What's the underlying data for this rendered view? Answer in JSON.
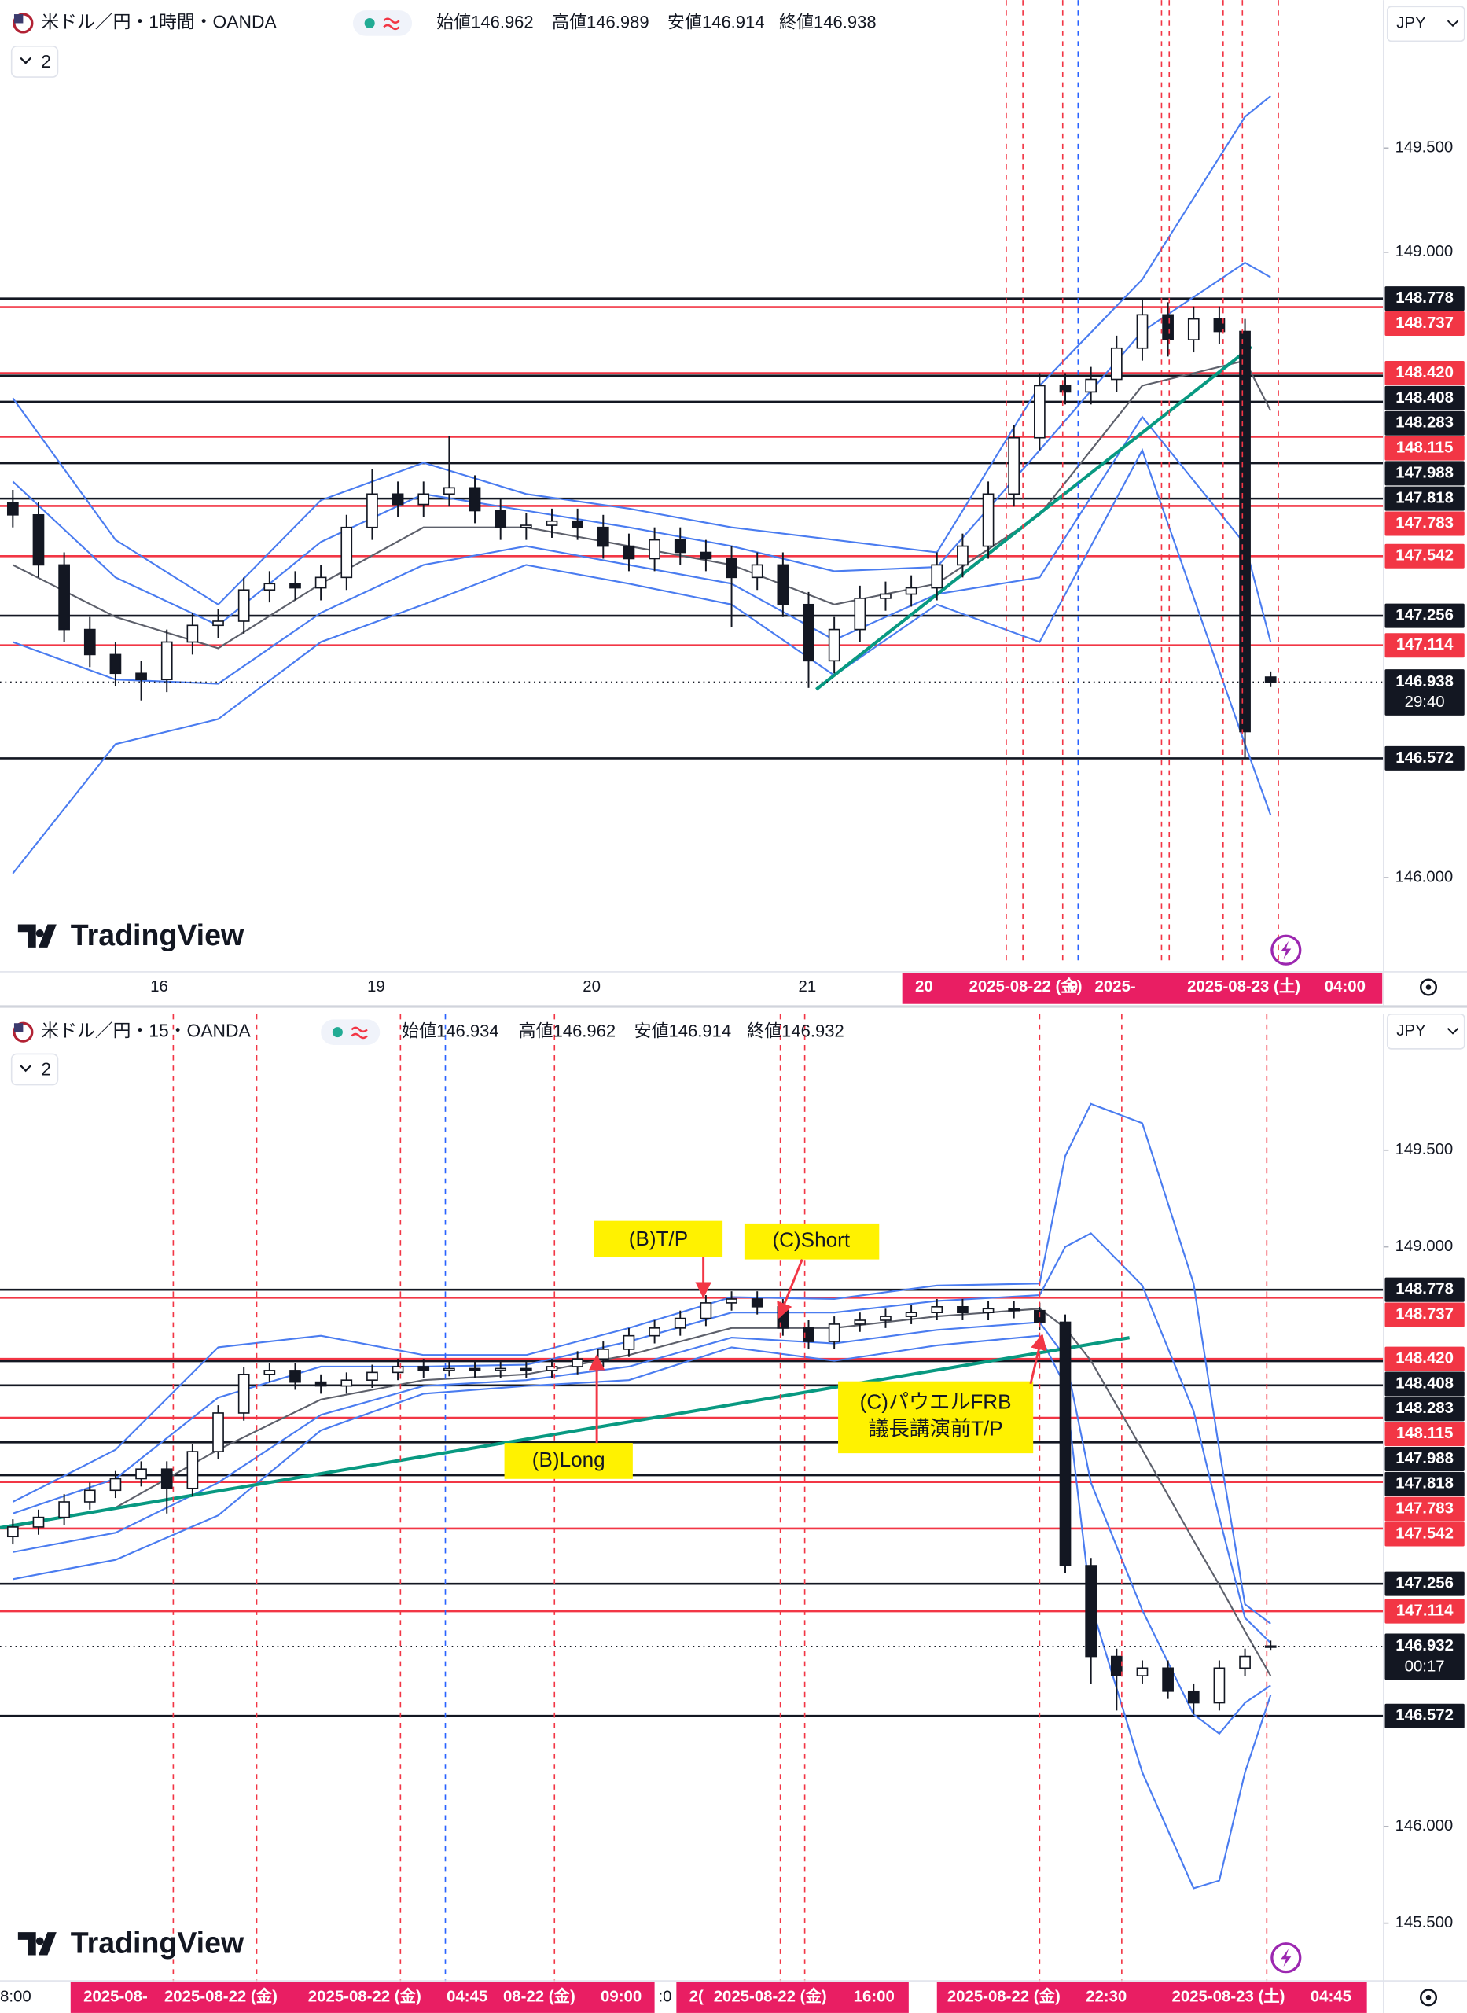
{
  "chart_data": [
    {
      "type": "candlestick",
      "title": "米ドル／円・1時間・OANDA",
      "ohlc_legend": [
        "始値146.962",
        "高値146.989",
        "安値146.914",
        "終値146.938"
      ],
      "indicator_count": 2,
      "currency": "JPY",
      "logo": "TradingView",
      "ylim": [
        145.56,
        150.21
      ],
      "yticks": [
        {
          "value": 149.5,
          "label": "149.500"
        },
        {
          "value": 149,
          "label": "149.000"
        },
        {
          "value": 146,
          "label": "146.000"
        }
      ],
      "xtick_labels": [
        "16",
        "19",
        "20",
        "21"
      ],
      "time_labels": [
        "20",
        "2025-08-22 (金)",
        "0",
        "2025-",
        "2025-08-23 (土)",
        "04:00"
      ],
      "up_color": "#ffffff",
      "down_color": "#131722",
      "candles": {
        "open": [
          147.8,
          147.74,
          147.5,
          147.19,
          147.07,
          146.98,
          146.95,
          147.13,
          147.21,
          147.23,
          147.38,
          147.41,
          147.39,
          147.44,
          147.68,
          147.84,
          147.79,
          147.84,
          147.87,
          147.76,
          147.68,
          147.69,
          147.71,
          147.68,
          147.59,
          147.53,
          147.62,
          147.56,
          147.53,
          147.44,
          147.5,
          147.31,
          147.04,
          147.19,
          147.34,
          147.36,
          147.39,
          147.5,
          147.59,
          147.84,
          148.11,
          148.36,
          148.33,
          148.39,
          148.54,
          148.7,
          148.58,
          148.68,
          148.62,
          146.962
        ],
        "high": [
          147.86,
          147.8,
          147.56,
          147.25,
          147.13,
          147.04,
          147.19,
          147.27,
          147.29,
          147.44,
          147.47,
          147.47,
          147.5,
          147.74,
          147.96,
          147.9,
          147.9,
          148.12,
          147.93,
          147.82,
          147.75,
          147.77,
          147.77,
          147.74,
          147.65,
          147.68,
          147.68,
          147.62,
          147.59,
          147.56,
          147.56,
          147.37,
          147.25,
          147.4,
          147.42,
          147.45,
          147.56,
          147.65,
          147.9,
          148.17,
          148.42,
          148.42,
          148.45,
          148.6,
          148.78,
          148.76,
          148.74,
          148.74,
          148.68,
          146.989
        ],
        "low": [
          147.68,
          147.44,
          147.13,
          147.01,
          146.92,
          146.85,
          146.89,
          147.07,
          147.15,
          147.17,
          147.32,
          147.33,
          147.33,
          147.38,
          147.62,
          147.73,
          147.73,
          147.78,
          147.7,
          147.62,
          147.62,
          147.63,
          147.62,
          147.53,
          147.47,
          147.47,
          147.5,
          147.47,
          147.2,
          147.38,
          147.25,
          146.91,
          146.98,
          147.13,
          147.28,
          147.3,
          147.33,
          147.44,
          147.53,
          147.78,
          148.05,
          148.27,
          148.27,
          148.33,
          148.48,
          148.5,
          148.52,
          148.56,
          146.572,
          146.914
        ],
        "close": [
          147.74,
          147.5,
          147.19,
          147.07,
          146.98,
          146.95,
          147.13,
          147.21,
          147.23,
          147.38,
          147.41,
          147.39,
          147.44,
          147.68,
          147.84,
          147.79,
          147.84,
          147.87,
          147.76,
          147.68,
          147.69,
          147.71,
          147.68,
          147.59,
          147.53,
          147.62,
          147.56,
          147.53,
          147.44,
          147.5,
          147.31,
          147.04,
          147.19,
          147.34,
          147.36,
          147.39,
          147.5,
          147.59,
          147.84,
          148.11,
          148.36,
          148.33,
          148.39,
          148.54,
          148.7,
          148.58,
          148.68,
          148.62,
          146.7,
          146.938
        ]
      },
      "indicators": [
        {
          "color": "#4a7cf0",
          "x": [
            0,
            4,
            8,
            12,
            16,
            20,
            24,
            28,
            32,
            36,
            40,
            44,
            48,
            49
          ],
          "values": [
            148.3,
            147.62,
            147.31,
            147.81,
            147.99,
            147.84,
            147.77,
            147.68,
            147.62,
            147.56,
            148.36,
            148.87,
            149.65,
            149.75
          ]
        },
        {
          "color": "#4a7cf0",
          "x": [
            0,
            4,
            8,
            12,
            16,
            20,
            24,
            28,
            32,
            36,
            40,
            44,
            48,
            49
          ],
          "values": [
            147.9,
            147.44,
            147.21,
            147.61,
            147.84,
            147.76,
            147.68,
            147.59,
            147.47,
            147.49,
            148.05,
            148.62,
            148.95,
            148.88
          ]
        },
        {
          "color": "#5d606b",
          "x": [
            0,
            4,
            8,
            12,
            16,
            20,
            24,
            28,
            32,
            36,
            40,
            44,
            48,
            49
          ],
          "values": [
            147.5,
            147.25,
            147.1,
            147.41,
            147.68,
            147.68,
            147.59,
            147.5,
            147.31,
            147.41,
            147.74,
            148.36,
            148.48,
            148.24
          ]
        },
        {
          "color": "#4a7cf0",
          "x": [
            0,
            4,
            8,
            12,
            16,
            20,
            24,
            28,
            32,
            36,
            40,
            44,
            48,
            49
          ],
          "values": [
            147.13,
            146.95,
            146.93,
            147.27,
            147.5,
            147.59,
            147.5,
            147.41,
            147.14,
            147.36,
            147.44,
            148.21,
            147.6,
            147.13
          ]
        },
        {
          "color": "#4a7cf0",
          "x": [
            0,
            4,
            8,
            12,
            16,
            20,
            24,
            28,
            32,
            36,
            40,
            44,
            48,
            49
          ],
          "values": [
            146.02,
            146.64,
            146.76,
            147.13,
            147.31,
            147.5,
            147.41,
            147.31,
            146.97,
            147.31,
            147.13,
            148.05,
            146.64,
            146.3
          ]
        }
      ],
      "levels": [
        {
          "value": 148.778,
          "label": "148.778",
          "color": "#131722"
        },
        {
          "value": 148.737,
          "label": "148.737",
          "color": "#f23645"
        },
        {
          "value": 148.42,
          "label": "148.420",
          "color": "#f23645"
        },
        {
          "value": 148.408,
          "label": "148.408",
          "color": "#131722"
        },
        {
          "value": 148.283,
          "label": "148.283",
          "color": "#131722"
        },
        {
          "value": 148.115,
          "label": "148.115",
          "color": "#f23645"
        },
        {
          "value": 147.988,
          "label": "147.988",
          "color": "#131722"
        },
        {
          "value": 147.818,
          "label": "147.818",
          "color": "#131722"
        },
        {
          "value": 147.783,
          "label": "147.783",
          "color": "#f23645"
        },
        {
          "value": 147.542,
          "label": "147.542",
          "color": "#f23645"
        },
        {
          "value": 147.256,
          "label": "147.256",
          "color": "#131722"
        },
        {
          "value": 147.114,
          "label": "147.114",
          "color": "#f23645"
        },
        {
          "value": 146.572,
          "label": "146.572",
          "color": "#131722"
        }
      ],
      "last_price": {
        "value": 146.938,
        "label": "146.938",
        "countdown": "29:40"
      }
    },
    {
      "type": "candlestick",
      "title": "米ドル／円・15・OANDA",
      "ohlc_legend": [
        "始値146.934",
        "高値146.962",
        "安値146.914",
        "終値146.932"
      ],
      "indicator_count": 2,
      "currency": "JPY",
      "logo": "TradingView",
      "ylim": [
        145.221,
        150.204
      ],
      "yticks": [
        {
          "value": 149.5,
          "label": "149.500"
        },
        {
          "value": 149,
          "label": "149.000"
        },
        {
          "value": 146,
          "label": "146.000"
        },
        {
          "value": 145.5,
          "label": "145.500"
        }
      ],
      "time_labels": [
        "8:00",
        "2025-08-",
        "2025-08-22 (金)",
        "2025-08-22 (金)",
        "04:45",
        "08-22 (金)",
        "09:00",
        ":0",
        "2(",
        "2025-08-22 (金)",
        "16:00",
        "2025-08-22 (金)",
        "22:30",
        "2025-08-23 (土)",
        "04:45"
      ],
      "annotations": [
        "(B)T/P",
        "(C)Short",
        "(B)Long",
        "(C)パウエルFRB",
        "議長講演前T/P"
      ],
      "up_color": "#ffffff",
      "down_color": "#131722",
      "candles": {
        "open": [
          147.5,
          147.55,
          147.6,
          147.68,
          147.74,
          147.8,
          147.85,
          147.75,
          147.94,
          148.14,
          148.34,
          148.36,
          148.3,
          148.28,
          148.31,
          148.35,
          148.38,
          148.36,
          148.37,
          148.36,
          148.37,
          148.36,
          148.38,
          148.42,
          148.47,
          148.54,
          148.58,
          148.63,
          148.71,
          148.73,
          148.69,
          148.58,
          148.51,
          148.6,
          148.62,
          148.64,
          148.66,
          148.69,
          148.66,
          148.68,
          148.67,
          148.61,
          147.35,
          146.88,
          146.78,
          146.82,
          146.7,
          146.64,
          146.82,
          146.934
        ],
        "high": [
          147.59,
          147.64,
          147.72,
          147.78,
          147.84,
          147.89,
          147.89,
          147.98,
          148.18,
          148.38,
          148.4,
          148.4,
          148.34,
          148.35,
          148.39,
          148.42,
          148.42,
          148.41,
          148.41,
          148.41,
          148.41,
          148.42,
          148.46,
          148.51,
          148.58,
          148.62,
          148.67,
          148.75,
          148.77,
          148.77,
          148.73,
          148.62,
          148.64,
          148.66,
          148.68,
          148.7,
          148.73,
          148.73,
          148.72,
          148.72,
          148.71,
          148.65,
          147.39,
          146.92,
          146.86,
          146.86,
          146.74,
          146.86,
          146.92,
          146.962
        ],
        "low": [
          147.46,
          147.51,
          147.56,
          147.64,
          147.7,
          147.76,
          147.62,
          147.71,
          147.9,
          148.1,
          148.3,
          148.26,
          148.24,
          148.24,
          148.27,
          148.31,
          148.32,
          148.33,
          148.32,
          148.32,
          148.32,
          148.32,
          148.34,
          148.38,
          148.43,
          148.5,
          148.54,
          148.59,
          148.67,
          148.65,
          148.54,
          148.47,
          148.47,
          148.56,
          148.58,
          148.6,
          148.62,
          148.62,
          148.62,
          148.63,
          148.57,
          147.31,
          146.74,
          146.6,
          146.74,
          146.66,
          146.58,
          146.6,
          146.78,
          146.914
        ],
        "close": [
          147.55,
          147.6,
          147.68,
          147.74,
          147.8,
          147.85,
          147.75,
          147.94,
          148.14,
          148.34,
          148.36,
          148.3,
          148.28,
          148.31,
          148.35,
          148.38,
          148.36,
          148.37,
          148.36,
          148.37,
          148.36,
          148.38,
          148.42,
          148.47,
          148.54,
          148.58,
          148.63,
          148.71,
          148.73,
          148.69,
          148.58,
          148.51,
          148.6,
          148.62,
          148.64,
          148.66,
          148.69,
          148.66,
          148.68,
          148.67,
          148.61,
          147.35,
          146.88,
          146.78,
          146.82,
          146.7,
          146.64,
          146.82,
          146.88,
          146.932
        ]
      },
      "indicators": [
        {
          "color": "#4a7cf0",
          "x": [
            0,
            4,
            8,
            12,
            16,
            20,
            24,
            28,
            32,
            36,
            40,
            41,
            42,
            44,
            46,
            47,
            48,
            49
          ],
          "values": [
            147.68,
            147.95,
            148.48,
            148.54,
            148.44,
            148.44,
            148.58,
            148.74,
            148.73,
            148.8,
            148.81,
            149.47,
            149.74,
            149.64,
            148.81,
            147.95,
            147.15,
            147.05
          ]
        },
        {
          "color": "#4a7cf0",
          "x": [
            0,
            4,
            8,
            12,
            16,
            20,
            24,
            28,
            32,
            36,
            40,
            41,
            42,
            44,
            46,
            47,
            48,
            49
          ],
          "values": [
            147.62,
            147.8,
            148.22,
            148.38,
            148.38,
            148.39,
            148.51,
            148.66,
            148.66,
            148.72,
            148.75,
            149.0,
            149.07,
            148.8,
            148.15,
            147.6,
            147.08,
            146.95
          ]
        },
        {
          "color": "#5d606b",
          "x": [
            0,
            4,
            8,
            12,
            16,
            20,
            24,
            28,
            32,
            36,
            40,
            41,
            42,
            44,
            46,
            47,
            48,
            49
          ],
          "values": [
            147.55,
            147.65,
            147.95,
            148.21,
            148.31,
            148.34,
            148.44,
            148.58,
            148.58,
            148.64,
            148.68,
            148.58,
            148.41,
            147.95,
            147.48,
            147.25,
            147.01,
            146.78
          ]
        },
        {
          "color": "#4a7cf0",
          "x": [
            0,
            4,
            8,
            12,
            16,
            20,
            24,
            28,
            32,
            36,
            40,
            41,
            42,
            44,
            46,
            47,
            48,
            49
          ],
          "values": [
            147.42,
            147.52,
            147.78,
            148.13,
            148.28,
            148.31,
            148.38,
            148.53,
            148.5,
            148.57,
            148.61,
            148.43,
            147.78,
            147.12,
            146.58,
            146.48,
            146.64,
            146.73
          ]
        },
        {
          "color": "#4a7cf0",
          "x": [
            0,
            4,
            8,
            12,
            16,
            20,
            24,
            28,
            32,
            36,
            40,
            41,
            42,
            44,
            46,
            47,
            48,
            49
          ],
          "values": [
            147.28,
            147.38,
            147.61,
            148.05,
            148.24,
            148.28,
            148.31,
            148.48,
            148.41,
            148.49,
            148.54,
            148.28,
            147.15,
            146.28,
            145.68,
            145.72,
            146.28,
            146.68
          ]
        }
      ],
      "levels": [
        {
          "value": 148.778,
          "label": "148.778",
          "color": "#131722"
        },
        {
          "value": 148.737,
          "label": "148.737",
          "color": "#f23645"
        },
        {
          "value": 148.42,
          "label": "148.420",
          "color": "#f23645"
        },
        {
          "value": 148.408,
          "label": "148.408",
          "color": "#131722"
        },
        {
          "value": 148.283,
          "label": "148.283",
          "color": "#131722"
        },
        {
          "value": 148.115,
          "label": "148.115",
          "color": "#f23645"
        },
        {
          "value": 147.988,
          "label": "147.988",
          "color": "#131722"
        },
        {
          "value": 147.818,
          "label": "147.818",
          "color": "#131722"
        },
        {
          "value": 147.783,
          "label": "147.783",
          "color": "#f23645"
        },
        {
          "value": 147.542,
          "label": "147.542",
          "color": "#f23645"
        },
        {
          "value": 147.256,
          "label": "147.256",
          "color": "#131722"
        },
        {
          "value": 147.114,
          "label": "147.114",
          "color": "#f23645"
        },
        {
          "value": 146.572,
          "label": "146.572",
          "color": "#131722"
        }
      ],
      "last_price": {
        "value": 146.932,
        "label": "146.932",
        "countdown": "00:17"
      }
    }
  ]
}
